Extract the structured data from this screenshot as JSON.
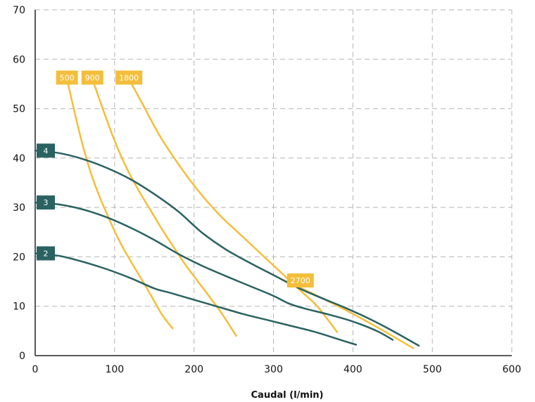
{
  "chart_data": {
    "type": "line",
    "title": "",
    "xlabel": "Caudal (l/min)",
    "ylabel": "",
    "xlim": [
      0,
      600
    ],
    "ylim": [
      0,
      70
    ],
    "xticks": [
      0,
      100,
      200,
      300,
      400,
      500,
      600
    ],
    "yticks": [
      0,
      10,
      20,
      30,
      40,
      50,
      60,
      70
    ],
    "grid": true,
    "colors": {
      "system": "#2a6262",
      "speed": "#f3be3b"
    },
    "system_curves": [
      {
        "name": "4",
        "x": [
          0,
          30,
          60,
          90,
          120,
          150,
          180,
          210,
          240,
          270,
          300,
          330,
          360,
          390,
          420,
          450,
          483
        ],
        "y": [
          41.5,
          41,
          39.8,
          38,
          35.7,
          32.7,
          29.2,
          24.9,
          21.5,
          18.8,
          16.3,
          13.8,
          11.7,
          9.7,
          7.5,
          5.0,
          2.0
        ]
      },
      {
        "name": "3",
        "x": [
          0,
          30,
          60,
          90,
          120,
          150,
          180,
          210,
          240,
          270,
          300,
          320,
          340,
          370,
          400,
          430,
          450
        ],
        "y": [
          31,
          30.6,
          29.6,
          28,
          25.9,
          23.4,
          20.6,
          18.2,
          16.1,
          14.1,
          12.1,
          10.5,
          9.5,
          8.3,
          6.9,
          5.0,
          3.2
        ]
      },
      {
        "name": "2",
        "x": [
          0,
          30,
          60,
          90,
          120,
          150,
          170,
          200,
          230,
          260,
          290,
          320,
          350,
          380,
          404
        ],
        "y": [
          20.7,
          20.2,
          19.0,
          17.5,
          15.7,
          13.6,
          12.7,
          11.3,
          9.9,
          8.5,
          7.3,
          6.1,
          4.9,
          3.4,
          2.2
        ]
      }
    ],
    "speed_curves": [
      {
        "name": "500",
        "x": [
          40,
          50,
          60,
          70,
          80,
          90,
          100,
          110,
          120,
          130,
          140,
          150,
          160,
          173
        ],
        "y": [
          56,
          49,
          42.5,
          37,
          32.6,
          28.8,
          25.2,
          22.0,
          19.2,
          16.5,
          13.8,
          11.0,
          8.2,
          5.5
        ]
      },
      {
        "name": "900",
        "x": [
          72,
          85,
          100,
          115,
          130,
          145,
          160,
          175,
          190,
          205,
          220,
          235,
          253
        ],
        "y": [
          56,
          50,
          43.5,
          38,
          33.5,
          29.5,
          25.5,
          21.8,
          18.2,
          15.0,
          11.8,
          8.5,
          4.0
        ]
      },
      {
        "name": "1800",
        "x": [
          118,
          135,
          155,
          175,
          195,
          215,
          235,
          255,
          275,
          295,
          315,
          335,
          355,
          380
        ],
        "y": [
          56,
          51,
          45,
          40,
          35.5,
          31.5,
          28,
          25,
          22,
          19,
          16,
          13,
          10,
          4.8
        ]
      },
      {
        "name": "2700",
        "x": [
          310,
          350,
          390,
          430,
          476
        ],
        "y": [
          15.5,
          12.5,
          9.3,
          5.8,
          1.5
        ]
      }
    ]
  }
}
